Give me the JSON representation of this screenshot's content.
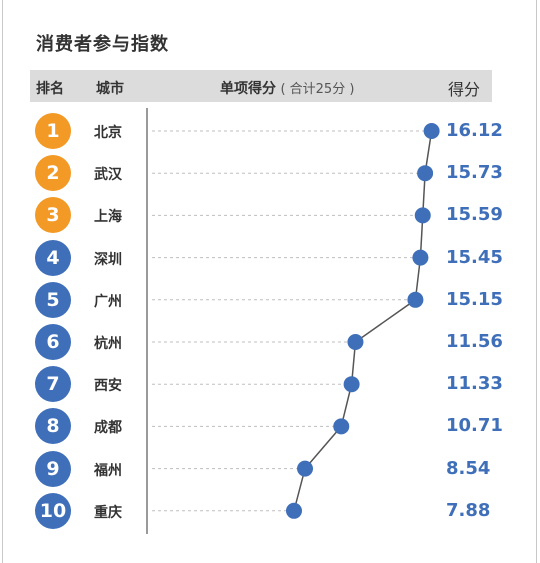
{
  "title": "消费者参与指数",
  "header": {
    "rank": "排名",
    "city": "城市",
    "score_title": "单项得分",
    "score_note": "( 合计25分 )",
    "score": "得分"
  },
  "colors": {
    "top3": "#f39a26",
    "others": "#3f6fb8",
    "line": "#555555",
    "dots": "#3f6fb8",
    "dashed": "#bfbfbf",
    "score_text": "#3f6fb8"
  },
  "chart_data": {
    "type": "line",
    "title": "消费者参与指数",
    "xlabel": "单项得分（合计25分）",
    "ylabel": "城市",
    "ranks": [
      "1",
      "2",
      "3",
      "4",
      "5",
      "6",
      "7",
      "8",
      "9",
      "10"
    ],
    "categories": [
      "北京",
      "武汉",
      "上海",
      "深圳",
      "广州",
      "杭州",
      "西安",
      "成都",
      "福州",
      "重庆"
    ],
    "values": [
      16.12,
      15.73,
      15.59,
      15.45,
      15.15,
      11.56,
      11.33,
      10.71,
      8.54,
      7.88
    ],
    "value_labels": [
      "16.12",
      "15.73",
      "15.59",
      "15.45",
      "15.15",
      "11.56",
      "11.33",
      "10.71",
      "8.54",
      "7.88"
    ],
    "legend": "none",
    "grid": false
  }
}
